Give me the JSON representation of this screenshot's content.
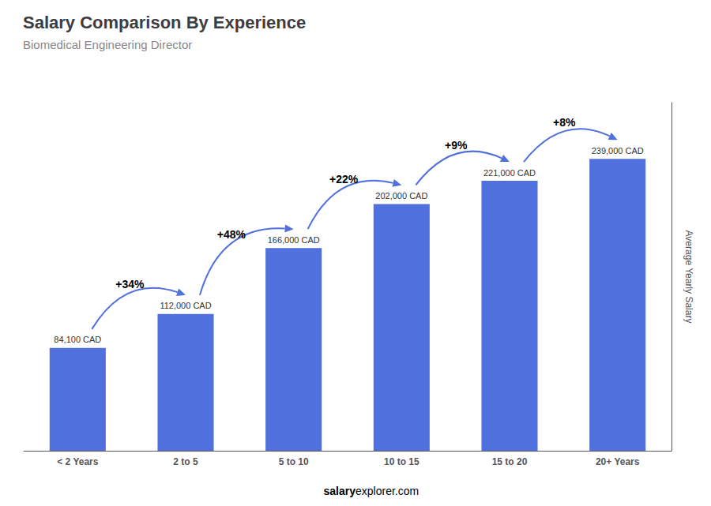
{
  "chart_data": {
    "type": "bar",
    "title": "Salary Comparison By Experience",
    "subtitle": "Biomedical Engineering Director",
    "categories": [
      "< 2 Years",
      "2 to 5",
      "5 to 10",
      "10 to 15",
      "15 to 20",
      "20+ Years"
    ],
    "values": [
      84100,
      112000,
      166000,
      202000,
      221000,
      239000
    ],
    "value_labels": [
      "84,100 CAD",
      "112,000 CAD",
      "166,000 CAD",
      "202,000 CAD",
      "221,000 CAD",
      "239,000 CAD"
    ],
    "data_labels": true,
    "ylabel": "Average Yearly Salary",
    "ylim": [
      0,
      285000
    ],
    "tick_labels": "x",
    "grid": false,
    "annotations": [
      "+34%",
      "+48%",
      "+22%",
      "+9%",
      "+8%"
    ],
    "footer": [
      "salary",
      "explorer.com"
    ]
  }
}
